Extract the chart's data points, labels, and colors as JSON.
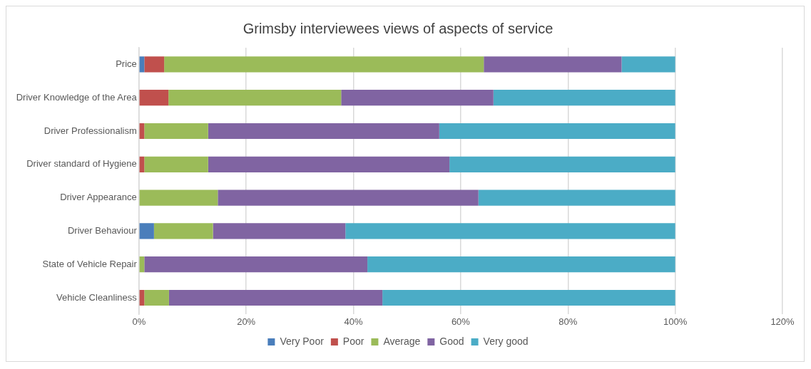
{
  "chart_data": {
    "type": "bar",
    "orientation": "horizontal",
    "stacked": true,
    "title": "Grimsby interviewees views of aspects of service",
    "categories": [
      "Price",
      "Driver Knowledge of the Area",
      "Driver Professionalism",
      "Driver standard of Hygiene",
      "Driver Appearance",
      "Driver Behaviour",
      "State of Vehicle Repair",
      "Vehicle Cleanliness"
    ],
    "series": [
      {
        "name": "Very Poor",
        "color": "#4a7ebb",
        "values": [
          1.0,
          0,
          0,
          0,
          0,
          2.8,
          0,
          0
        ]
      },
      {
        "name": "Poor",
        "color": "#c0504d",
        "values": [
          3.7,
          5.5,
          1.0,
          1.0,
          0,
          0,
          0,
          1.0
        ]
      },
      {
        "name": "Average",
        "color": "#9bbb59",
        "values": [
          59.6,
          32.2,
          11.9,
          11.9,
          14.7,
          11.0,
          1.0,
          4.6
        ]
      },
      {
        "name": "Good",
        "color": "#8064a2",
        "values": [
          25.7,
          28.4,
          43.1,
          45.0,
          48.6,
          24.7,
          41.6,
          39.8
        ]
      },
      {
        "name": "Very good",
        "color": "#4bacc6",
        "values": [
          10.0,
          33.9,
          44.0,
          42.1,
          36.7,
          61.5,
          57.4,
          54.6
        ]
      }
    ],
    "xlim": [
      0,
      120
    ],
    "xticks": [
      {
        "value": 0,
        "label": "0%"
      },
      {
        "value": 20,
        "label": "20%"
      },
      {
        "value": 40,
        "label": "40%"
      },
      {
        "value": 60,
        "label": "60%"
      },
      {
        "value": 80,
        "label": "80%"
      },
      {
        "value": 100,
        "label": "100%"
      },
      {
        "value": 120,
        "label": "120%"
      }
    ],
    "grid": "x",
    "legend": "bottom"
  }
}
